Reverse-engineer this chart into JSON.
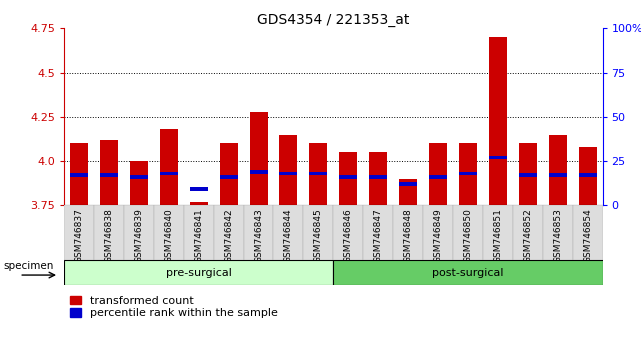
{
  "title": "GDS4354 / 221353_at",
  "samples": [
    "GSM746837",
    "GSM746838",
    "GSM746839",
    "GSM746840",
    "GSM746841",
    "GSM746842",
    "GSM746843",
    "GSM746844",
    "GSM746845",
    "GSM746846",
    "GSM746847",
    "GSM746848",
    "GSM746849",
    "GSM746850",
    "GSM746851",
    "GSM746852",
    "GSM746853",
    "GSM746854"
  ],
  "red_heights": [
    4.1,
    4.12,
    4.0,
    4.18,
    3.77,
    4.1,
    4.28,
    4.15,
    4.1,
    4.05,
    4.05,
    3.9,
    4.1,
    4.1,
    4.7,
    4.1,
    4.15,
    4.08
  ],
  "blue_positions": [
    3.92,
    3.92,
    3.91,
    3.93,
    3.84,
    3.91,
    3.94,
    3.93,
    3.93,
    3.91,
    3.91,
    3.87,
    3.91,
    3.93,
    4.02,
    3.92,
    3.92,
    3.92
  ],
  "ymin": 3.75,
  "ymax": 4.75,
  "yticks_left": [
    3.75,
    4.0,
    4.25,
    4.5,
    4.75
  ],
  "yticks_right": [
    0,
    25,
    50,
    75,
    100
  ],
  "ytick_right_labels": [
    "0",
    "25",
    "50",
    "75",
    "100%"
  ],
  "bar_width": 0.6,
  "red_color": "#cc0000",
  "blue_color": "#0000cc",
  "pre_surgical_count": 9,
  "group1_label": "pre-surgical",
  "group2_label": "post-surgical",
  "group1_color": "#ccffcc",
  "group2_color": "#66cc66",
  "specimen_label": "specimen",
  "legend_red": "transformed count",
  "legend_blue": "percentile rank within the sample",
  "bg_plot": "white",
  "bg_xticklabels": "#dddddd",
  "blue_bar_height": 0.022
}
